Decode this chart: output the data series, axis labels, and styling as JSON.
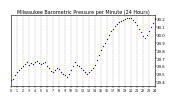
{
  "title": "Milwaukee Barometric Pressure per Minute (24 Hours)",
  "title_fontsize": 3.5,
  "background_color": "#ffffff",
  "plot_bg_color": "#ffffff",
  "dot_color": "#0000cc",
  "dot_size": 0.8,
  "grid_color": "#aaaaaa",
  "grid_style": "--",
  "ylim": [
    29.35,
    30.25
  ],
  "xlim": [
    0,
    1440
  ],
  "yticks": [
    29.4,
    29.5,
    29.6,
    29.7,
    29.8,
    29.9,
    30.0,
    30.1,
    30.2
  ],
  "ytick_labels": [
    "29.4",
    "29.5",
    "29.6",
    "29.7",
    "29.8",
    "29.9",
    "30.0",
    "30.1",
    "30.2"
  ],
  "xtick_positions": [
    0,
    60,
    120,
    180,
    240,
    300,
    360,
    420,
    480,
    540,
    600,
    660,
    720,
    780,
    840,
    900,
    960,
    1020,
    1080,
    1140,
    1200,
    1260,
    1320,
    1380,
    1440
  ],
  "xtick_labels": [
    "0",
    "1",
    "2",
    "3",
    "4",
    "5",
    "6",
    "7",
    "8",
    "9",
    "10",
    "11",
    "12",
    "13",
    "14",
    "15",
    "16",
    "17",
    "18",
    "19",
    "20",
    "21",
    "22",
    "23",
    "24"
  ],
  "x": [
    0,
    20,
    40,
    60,
    80,
    100,
    120,
    140,
    160,
    180,
    200,
    220,
    240,
    260,
    280,
    300,
    320,
    340,
    360,
    380,
    400,
    420,
    440,
    460,
    480,
    500,
    520,
    540,
    560,
    580,
    600,
    620,
    640,
    660,
    680,
    700,
    720,
    740,
    760,
    780,
    800,
    820,
    840,
    860,
    880,
    900,
    920,
    940,
    960,
    980,
    1000,
    1020,
    1040,
    1060,
    1080,
    1100,
    1120,
    1140,
    1160,
    1180,
    1200,
    1220,
    1240,
    1260,
    1280,
    1300,
    1320,
    1340,
    1360,
    1380,
    1400,
    1420,
    1440
  ],
  "y": [
    29.42,
    29.44,
    29.48,
    29.52,
    29.55,
    29.57,
    29.6,
    29.63,
    29.65,
    29.62,
    29.64,
    29.63,
    29.65,
    29.66,
    29.64,
    29.63,
    29.64,
    29.65,
    29.6,
    29.57,
    29.54,
    29.52,
    29.55,
    29.58,
    29.56,
    29.53,
    29.5,
    29.48,
    29.46,
    29.5,
    29.55,
    29.6,
    29.65,
    29.62,
    29.6,
    29.57,
    29.55,
    29.52,
    29.5,
    29.52,
    29.55,
    29.58,
    29.62,
    29.68,
    29.74,
    29.8,
    29.86,
    29.9,
    29.95,
    30.0,
    30.05,
    30.08,
    30.11,
    30.14,
    30.16,
    30.18,
    30.19,
    30.2,
    30.21,
    30.22,
    30.21,
    30.19,
    30.16,
    30.12,
    30.08,
    30.04,
    29.98,
    29.96,
    30.0,
    30.05,
    30.1,
    30.15,
    30.2
  ]
}
